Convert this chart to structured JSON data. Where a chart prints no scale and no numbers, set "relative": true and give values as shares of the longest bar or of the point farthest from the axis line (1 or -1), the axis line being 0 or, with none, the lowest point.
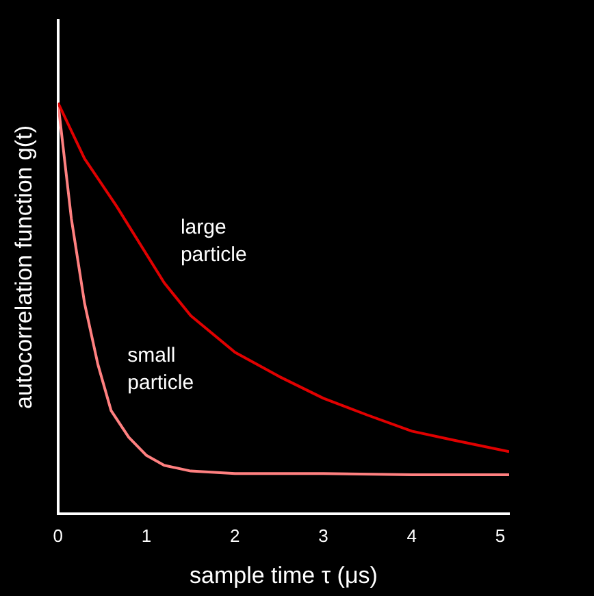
{
  "chart_data": {
    "type": "line",
    "xlabel": "sample time τ (μs)",
    "ylabel": "autocorrelation function g(t)",
    "relative": true,
    "xlim": [
      0,
      5.1
    ],
    "xticks": [
      0,
      1,
      2,
      3,
      4,
      5
    ],
    "grid": false,
    "legend": false,
    "marker": "none",
    "line_style": "solid",
    "series": [
      {
        "name": "large particle",
        "color": "#e00000",
        "x": [
          0,
          0.3,
          0.66,
          1.2,
          1.5,
          2,
          2.5,
          3,
          3.5,
          4,
          4.5,
          5.1
        ],
        "values": [
          1,
          0.864,
          0.749,
          0.562,
          0.482,
          0.393,
          0.334,
          0.281,
          0.24,
          0.201,
          0.178,
          0.151
        ]
      },
      {
        "name": "small particle",
        "color": "#ff8080",
        "x": [
          0,
          0.15,
          0.3,
          0.45,
          0.6,
          0.8,
          1,
          1.2,
          1.5,
          2,
          3,
          4,
          5.1
        ],
        "values": [
          1,
          0.719,
          0.512,
          0.364,
          0.251,
          0.186,
          0.142,
          0.118,
          0.104,
          0.098,
          0.098,
          0.095,
          0.095
        ]
      }
    ]
  }
}
